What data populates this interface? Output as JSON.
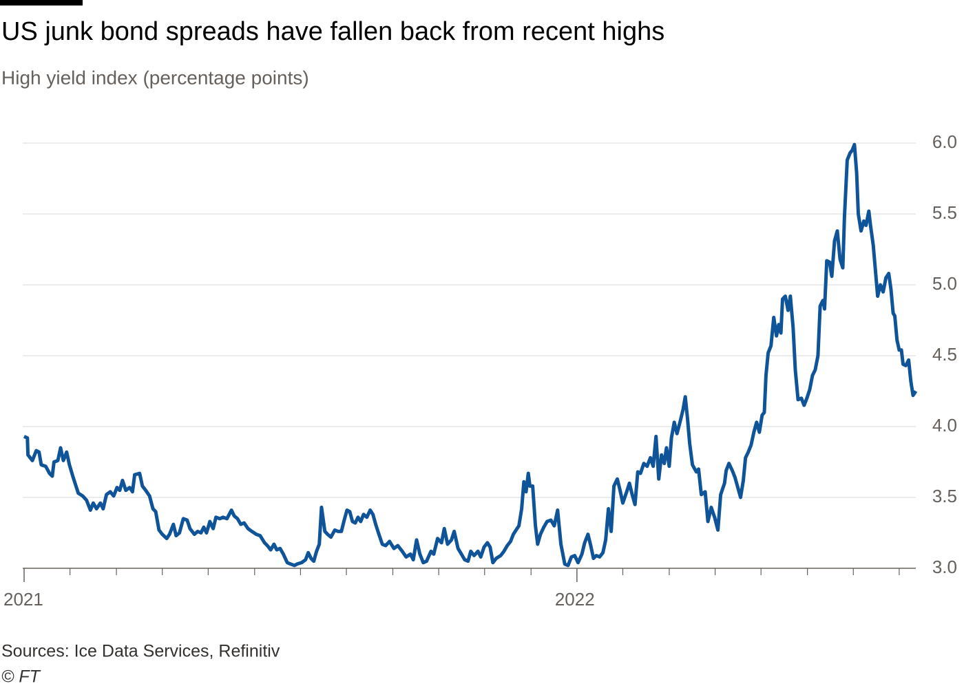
{
  "chart_data": {
    "type": "line",
    "title": "US junk bond spreads have fallen back from recent highs",
    "subtitle": "High yield index (percentage points)",
    "source": "Sources: Ice Data Services, Refinitiv",
    "credit": "© FT",
    "xlim": [
      2021,
      2022.613
    ],
    "xticks": [
      2021,
      2022
    ],
    "xminorticks": [
      2021.083,
      2021.167,
      2021.25,
      2021.333,
      2021.417,
      2021.5,
      2021.583,
      2021.667,
      2021.75,
      2021.833,
      2021.917,
      2022.083,
      2022.167,
      2022.25,
      2022.333,
      2022.417,
      2022.5,
      2022.583
    ],
    "ylim": [
      3,
      6
    ],
    "yticks": [
      {
        "value": 3,
        "label": "3.0"
      },
      3.5,
      {
        "value": 4,
        "label": "4.0"
      },
      4.5,
      {
        "value": 5,
        "label": "5.0"
      },
      5.5,
      {
        "value": 6,
        "label": "6.0"
      }
    ],
    "grid": true,
    "x": [
      2021.0,
      2021.006,
      2021.007,
      2021.015,
      2021.022,
      2021.027,
      2021.031,
      2021.039,
      2021.046,
      2021.051,
      2021.054,
      2021.061,
      2021.066,
      2021.071,
      2021.077,
      2021.082,
      2021.088,
      2021.093,
      2021.098,
      2021.106,
      2021.113,
      2021.12,
      2021.125,
      2021.131,
      2021.138,
      2021.143,
      2021.149,
      2021.156,
      2021.162,
      2021.168,
      2021.173,
      2021.178,
      2021.184,
      2021.191,
      2021.196,
      2021.2,
      2021.209,
      2021.214,
      2021.22,
      2021.227,
      2021.233,
      2021.238,
      2021.244,
      2021.25,
      2021.258,
      2021.263,
      2021.27,
      2021.275,
      2021.281,
      2021.288,
      2021.295,
      2021.3,
      2021.308,
      2021.314,
      2021.32,
      2021.325,
      2021.33,
      2021.336,
      2021.342,
      2021.347,
      2021.354,
      2021.36,
      2021.367,
      2021.375,
      2021.38,
      2021.386,
      2021.392,
      2021.398,
      2021.405,
      2021.412,
      2021.42,
      2021.427,
      2021.435,
      2021.44,
      2021.446,
      2021.452,
      2021.457,
      2021.463,
      2021.469,
      2021.476,
      2021.482,
      2021.489,
      2021.494,
      2021.502,
      2021.509,
      2021.514,
      2021.519,
      2021.524,
      2021.529,
      2021.534,
      2021.538,
      2021.544,
      2021.549,
      2021.555,
      2021.562,
      2021.568,
      2021.574,
      2021.579,
      2021.584,
      2021.589,
      2021.594,
      2021.599,
      2021.604,
      2021.609,
      2021.614,
      2021.62,
      2021.626,
      2021.631,
      2021.636,
      2021.641,
      2021.648,
      2021.654,
      2021.661,
      2021.669,
      2021.676,
      2021.684,
      2021.691,
      2021.699,
      2021.704,
      2021.71,
      2021.716,
      2021.722,
      2021.728,
      2021.736,
      2021.741,
      2021.748,
      2021.755,
      2021.76,
      2021.766,
      2021.773,
      2021.778,
      2021.785,
      2021.791,
      2021.797,
      2021.803,
      2021.808,
      2021.814,
      2021.821,
      2021.826,
      2021.832,
      2021.838,
      2021.843,
      2021.848,
      2021.854,
      2021.862,
      2021.868,
      2021.874,
      2021.88,
      2021.885,
      2021.89,
      2021.895,
      2021.9,
      2021.904,
      2021.908,
      2021.912,
      2021.915,
      2021.92,
      2021.925,
      2021.929,
      2021.934,
      2021.94,
      2021.946,
      2021.953,
      2021.959,
      2021.965,
      2021.971,
      2021.978,
      2021.984,
      2021.99,
      2021.996,
      2022.002,
      2022.009,
      2022.014,
      2022.02,
      2022.025,
      2022.03,
      2022.035,
      2022.041,
      2022.047,
      2022.052,
      2022.057,
      2022.062,
      2022.067,
      2022.073,
      2022.078,
      2022.083,
      2022.09,
      2022.095,
      2022.1,
      2022.105,
      2022.11,
      2022.115,
      2022.121,
      2022.127,
      2022.133,
      2022.138,
      2022.143,
      2022.148,
      2022.153,
      2022.158,
      2022.162,
      2022.167,
      2022.171,
      2022.176,
      2022.181,
      2022.187,
      2022.192,
      2022.196,
      2022.2,
      2022.204,
      2022.209,
      2022.216,
      2022.22,
      2022.225,
      2022.232,
      2022.237,
      2022.243,
      2022.249,
      2022.255,
      2022.26,
      2022.267,
      2022.27,
      2022.275,
      2022.281,
      2022.286,
      2022.291,
      2022.296,
      2022.301,
      2022.305,
      2022.31,
      2022.315,
      2022.32,
      2022.325,
      2022.33,
      2022.335,
      2022.339,
      2022.342,
      2022.346,
      2022.351,
      2022.356,
      2022.361,
      2022.365,
      2022.369,
      2022.372,
      2022.377,
      2022.382,
      2022.386,
      2022.391,
      2022.395,
      2022.4,
      2022.406,
      2022.411,
      2022.416,
      2022.421,
      2022.426,
      2022.431,
      2022.436,
      2022.44,
      2022.445,
      2022.448,
      2022.452,
      2022.457,
      2022.461,
      2022.466,
      2022.471,
      2022.476,
      2022.481,
      2022.484,
      2022.489,
      2022.494,
      2022.498,
      2022.502,
      2022.506,
      2022.509,
      2022.514,
      2022.519,
      2022.523,
      2022.528,
      2022.531,
      2022.536,
      2022.54,
      2022.544,
      2022.549,
      2022.554,
      2022.559,
      2022.564,
      2022.568,
      2022.572,
      2022.575,
      2022.579,
      2022.583,
      2022.587,
      2022.59,
      2022.595,
      2022.6,
      2022.604,
      2022.608,
      2022.613
    ],
    "series": [
      {
        "color": "#0f5499",
        "values": [
          3.93,
          3.92,
          3.8,
          3.76,
          3.83,
          3.82,
          3.73,
          3.72,
          3.67,
          3.65,
          3.75,
          3.76,
          3.85,
          3.76,
          3.82,
          3.73,
          3.65,
          3.59,
          3.53,
          3.51,
          3.48,
          3.41,
          3.46,
          3.42,
          3.46,
          3.42,
          3.52,
          3.54,
          3.51,
          3.57,
          3.55,
          3.62,
          3.55,
          3.57,
          3.54,
          3.66,
          3.67,
          3.58,
          3.55,
          3.51,
          3.42,
          3.4,
          3.27,
          3.24,
          3.21,
          3.24,
          3.31,
          3.23,
          3.25,
          3.35,
          3.34,
          3.28,
          3.24,
          3.26,
          3.25,
          3.29,
          3.25,
          3.33,
          3.28,
          3.36,
          3.35,
          3.36,
          3.35,
          3.41,
          3.37,
          3.35,
          3.31,
          3.32,
          3.28,
          3.26,
          3.24,
          3.23,
          3.18,
          3.16,
          3.13,
          3.17,
          3.13,
          3.14,
          3.1,
          3.04,
          3.03,
          3.02,
          3.03,
          3.04,
          3.06,
          3.11,
          3.07,
          3.05,
          3.12,
          3.17,
          3.43,
          3.26,
          3.24,
          3.22,
          3.27,
          3.26,
          3.26,
          3.34,
          3.41,
          3.4,
          3.33,
          3.32,
          3.36,
          3.33,
          3.38,
          3.36,
          3.41,
          3.38,
          3.31,
          3.25,
          3.17,
          3.16,
          3.19,
          3.14,
          3.16,
          3.12,
          3.08,
          3.1,
          3.06,
          3.2,
          3.1,
          3.04,
          3.05,
          3.12,
          3.1,
          3.21,
          3.18,
          3.28,
          3.17,
          3.2,
          3.26,
          3.14,
          3.1,
          3.06,
          3.05,
          3.12,
          3.09,
          3.12,
          3.08,
          3.15,
          3.18,
          3.15,
          3.04,
          3.07,
          3.09,
          3.12,
          3.16,
          3.19,
          3.24,
          3.27,
          3.3,
          3.42,
          3.61,
          3.54,
          3.67,
          3.58,
          3.58,
          3.3,
          3.17,
          3.24,
          3.29,
          3.33,
          3.34,
          3.3,
          3.41,
          3.17,
          3.03,
          3.02,
          3.08,
          3.09,
          3.04,
          3.1,
          3.18,
          3.24,
          3.16,
          3.07,
          3.09,
          3.08,
          3.11,
          3.2,
          3.42,
          3.26,
          3.58,
          3.63,
          3.55,
          3.46,
          3.54,
          3.6,
          3.52,
          3.45,
          3.68,
          3.67,
          3.74,
          3.72,
          3.78,
          3.72,
          3.93,
          3.63,
          3.8,
          3.74,
          3.85,
          3.72,
          3.92,
          4.03,
          3.95,
          4.04,
          4.12,
          4.21,
          4.06,
          3.88,
          3.73,
          3.68,
          3.7,
          3.52,
          3.54,
          3.33,
          3.43,
          3.36,
          3.27,
          3.52,
          3.6,
          3.69,
          3.74,
          3.69,
          3.64,
          3.57,
          3.5,
          3.62,
          3.78,
          3.82,
          3.87,
          3.96,
          4.03,
          3.96,
          4.08,
          4.1,
          4.36,
          4.52,
          4.57,
          4.77,
          4.64,
          4.72,
          4.66,
          4.9,
          4.92,
          4.82,
          4.92,
          4.7,
          4.4,
          4.19,
          4.2,
          4.15,
          4.2,
          4.26,
          4.36,
          4.4,
          4.5,
          4.85,
          4.89,
          4.83,
          5.17,
          5.16,
          5.06,
          5.31,
          5.38,
          5.18,
          5.12,
          5.48,
          5.88,
          5.93,
          5.95,
          5.99,
          5.79,
          5.5,
          5.38,
          5.45,
          5.42,
          5.52,
          5.42,
          5.28,
          5.1,
          4.92,
          5.0,
          4.95,
          5.05,
          5.08,
          4.97,
          4.8,
          4.78,
          4.61,
          4.54,
          4.54,
          4.44,
          4.43,
          4.47,
          4.32,
          4.22,
          4.25
        ]
      }
    ]
  }
}
